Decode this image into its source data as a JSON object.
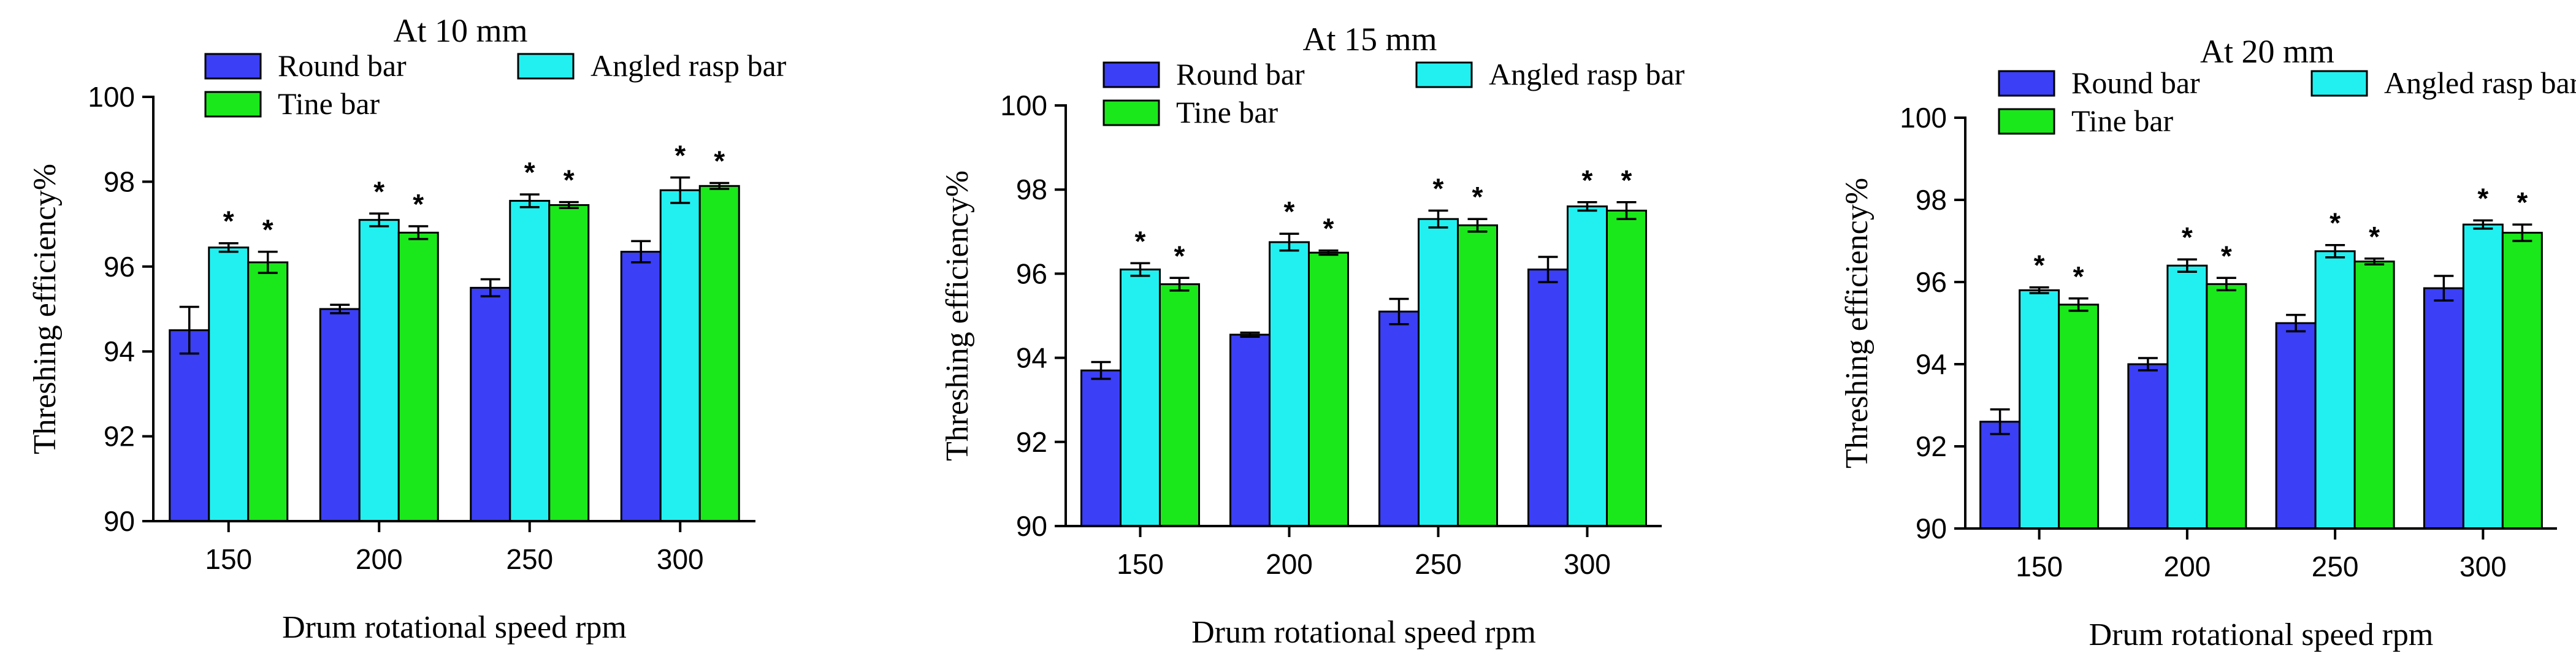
{
  "colors": {
    "Round bar": "#3b3ff5",
    "Angled rasp bar": "#22f0f0",
    "Tine bar": "#1ae81a"
  },
  "chart_data": [
    {
      "type": "bar",
      "title": "At 10 mm",
      "xlabel": "Drum rotational speed rpm",
      "ylabel": "Threshing efficiency%",
      "ylim": [
        90,
        100
      ],
      "yticks": [
        "90",
        "92",
        "94",
        "96",
        "98",
        "100"
      ],
      "categories": [
        "150",
        "200",
        "250",
        "300"
      ],
      "legend": [
        "Round bar",
        "Angled rasp bar",
        "Tine bar"
      ],
      "significance_marker": "*",
      "series": [
        {
          "name": "Round bar",
          "values": [
            94.5,
            95.0,
            95.5,
            96.35
          ],
          "errors": [
            0.55,
            0.1,
            0.2,
            0.25
          ],
          "significant": [
            false,
            false,
            false,
            false
          ]
        },
        {
          "name": "Angled rasp bar",
          "values": [
            96.45,
            97.1,
            97.55,
            97.8
          ],
          "errors": [
            0.1,
            0.15,
            0.15,
            0.3
          ],
          "significant": [
            true,
            true,
            true,
            true
          ]
        },
        {
          "name": "Tine bar",
          "values": [
            96.1,
            96.8,
            97.45,
            97.9
          ],
          "errors": [
            0.25,
            0.15,
            0.07,
            0.07
          ],
          "significant": [
            true,
            true,
            true,
            true
          ]
        }
      ]
    },
    {
      "type": "bar",
      "title": "At 15 mm",
      "xlabel": "Drum rotational speed rpm",
      "ylabel": "Threshing efficiency%",
      "ylim": [
        90,
        100
      ],
      "yticks": [
        "90",
        "92",
        "94",
        "96",
        "98",
        "100"
      ],
      "categories": [
        "150",
        "200",
        "250",
        "300"
      ],
      "legend": [
        "Round bar",
        "Angled rasp bar",
        "Tine bar"
      ],
      "significance_marker": "*",
      "series": [
        {
          "name": "Round bar",
          "values": [
            93.7,
            94.55,
            95.1,
            96.1
          ],
          "errors": [
            0.2,
            0.05,
            0.3,
            0.3
          ],
          "significant": [
            false,
            false,
            false,
            false
          ]
        },
        {
          "name": "Angled rasp bar",
          "values": [
            96.1,
            96.75,
            97.3,
            97.6
          ],
          "errors": [
            0.15,
            0.2,
            0.2,
            0.1
          ],
          "significant": [
            true,
            true,
            true,
            true
          ]
        },
        {
          "name": "Tine bar",
          "values": [
            95.75,
            96.5,
            97.15,
            97.5
          ],
          "errors": [
            0.15,
            0.05,
            0.15,
            0.2
          ],
          "significant": [
            true,
            true,
            true,
            true
          ]
        }
      ]
    },
    {
      "type": "bar",
      "title": "At 20 mm",
      "xlabel": "Drum rotational speed rpm",
      "ylabel": "Threshing efficiency%",
      "ylim": [
        90,
        100
      ],
      "yticks": [
        "90",
        "92",
        "94",
        "96",
        "98",
        "100"
      ],
      "categories": [
        "150",
        "200",
        "250",
        "300"
      ],
      "legend": [
        "Round bar",
        "Angled rasp bar",
        "Tine bar"
      ],
      "significance_marker": "*",
      "series": [
        {
          "name": "Round bar",
          "values": [
            92.6,
            94.0,
            95.0,
            95.85
          ],
          "errors": [
            0.3,
            0.15,
            0.2,
            0.3
          ],
          "significant": [
            false,
            false,
            false,
            false
          ]
        },
        {
          "name": "Angled rasp bar",
          "values": [
            95.8,
            96.4,
            96.75,
            97.4
          ],
          "errors": [
            0.07,
            0.15,
            0.15,
            0.1
          ],
          "significant": [
            true,
            true,
            true,
            true
          ]
        },
        {
          "name": "Tine bar",
          "values": [
            95.45,
            95.95,
            96.5,
            97.2
          ],
          "errors": [
            0.15,
            0.15,
            0.07,
            0.2
          ],
          "significant": [
            true,
            true,
            true,
            true
          ]
        }
      ]
    }
  ]
}
